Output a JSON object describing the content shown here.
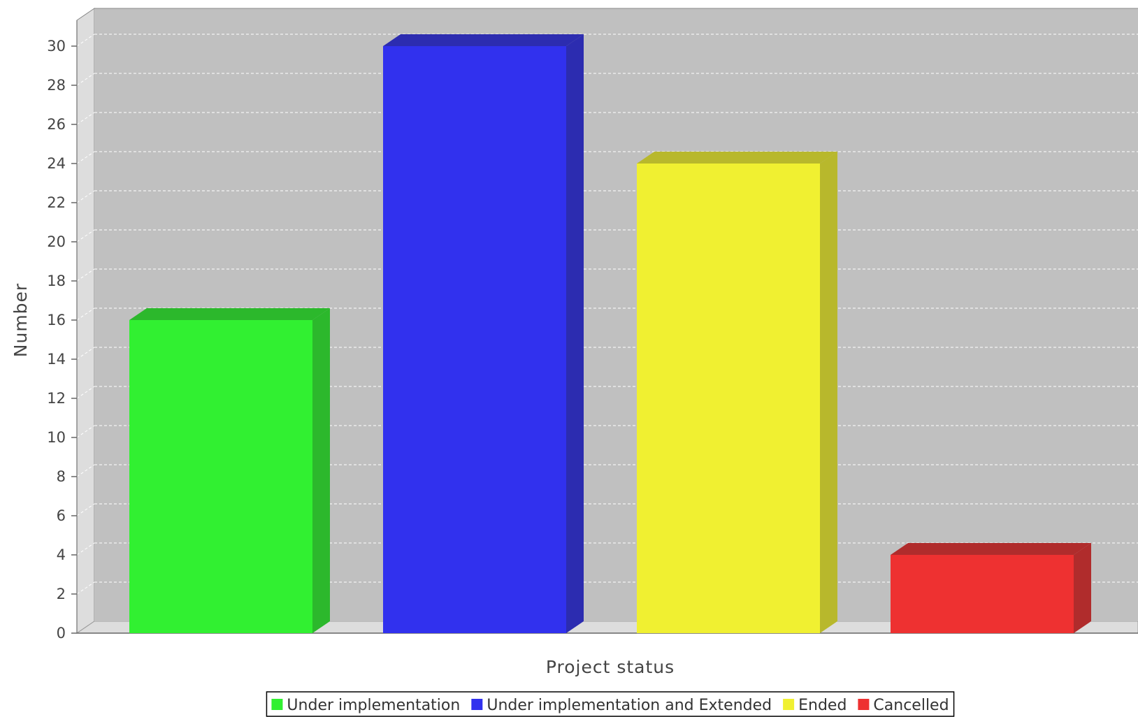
{
  "chart_data": {
    "type": "bar",
    "categories": [
      "Under implementation",
      "Under implementation and Extended",
      "Ended",
      "Cancelled"
    ],
    "values": [
      16,
      30,
      24,
      4
    ],
    "colors": [
      "#31f031",
      "#3131ee",
      "#f0f031",
      "#ee3131"
    ],
    "side_colors": [
      "#2cb82c",
      "#2c2cb0",
      "#b8b82c",
      "#b02c2c"
    ],
    "title": "",
    "xlabel": "Project status",
    "ylabel": "Number",
    "ylim": [
      0,
      30
    ],
    "yticks": [
      0,
      2,
      4,
      6,
      8,
      10,
      12,
      14,
      16,
      18,
      20,
      22,
      24,
      26,
      28,
      30
    ],
    "grid": true,
    "style": "3d",
    "legend": {
      "placement": "bottom-center",
      "entries": [
        "Under implementation",
        "Under implementation and Extended",
        "Ended",
        "Cancelled"
      ]
    }
  }
}
